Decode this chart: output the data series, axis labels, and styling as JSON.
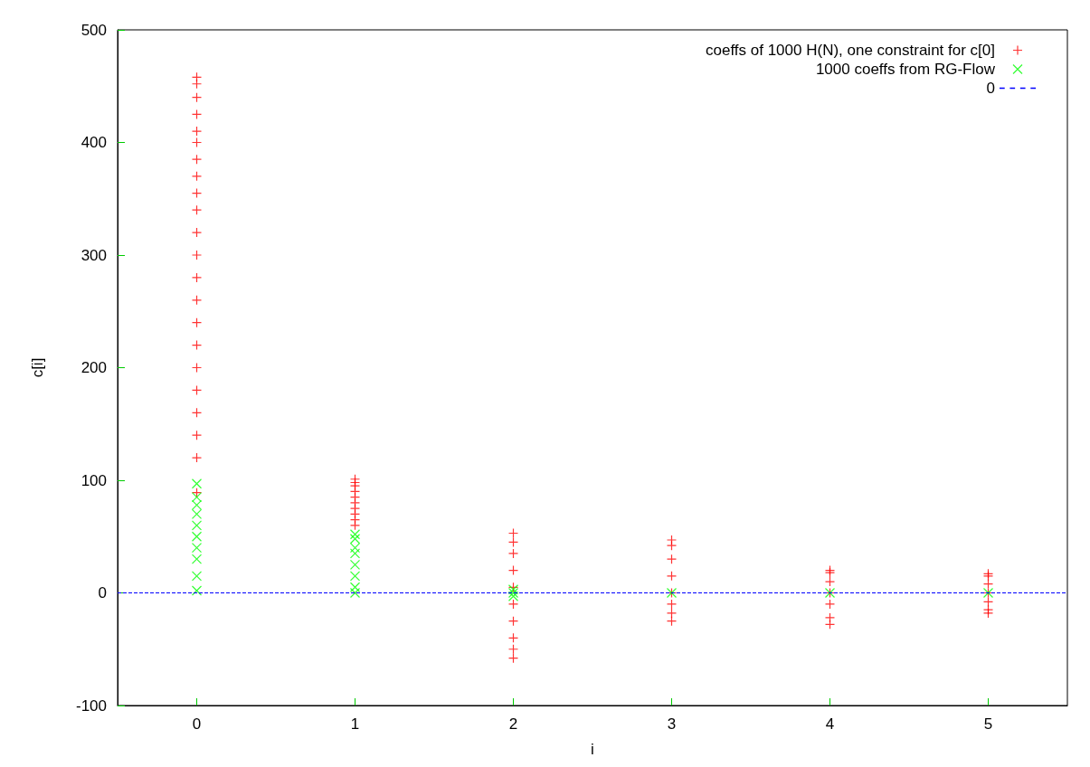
{
  "chart_data": {
    "type": "scatter",
    "xlabel": "i",
    "ylabel": "c[i]",
    "xlim": [
      -0.5,
      5.5
    ],
    "xticks": [
      0,
      1,
      2,
      3,
      4,
      5
    ],
    "ylim": [
      -100,
      500
    ],
    "yticks": [
      -100,
      0,
      100,
      200,
      300,
      400,
      500
    ],
    "grid": false,
    "legend": "top right",
    "series": [
      {
        "name": "coeffs of 1000 H(N), one constraint for c[0]",
        "color": "#ff0000",
        "marker": "plus",
        "x": [
          0,
          0,
          0,
          0,
          0,
          0,
          0,
          0,
          0,
          0,
          0,
          0,
          0,
          0,
          0,
          0,
          0,
          0,
          0,
          0,
          0,
          0,
          1,
          1,
          1,
          1,
          1,
          1,
          1,
          1,
          1,
          1,
          2,
          2,
          2,
          2,
          2,
          2,
          2,
          2,
          2,
          2,
          3,
          3,
          3,
          3,
          3,
          3,
          3,
          3,
          4,
          4,
          4,
          4,
          4,
          4,
          4,
          5,
          5,
          5,
          5,
          5,
          5,
          5
        ],
        "values": [
          458,
          452,
          440,
          425,
          410,
          400,
          385,
          370,
          355,
          340,
          320,
          300,
          280,
          260,
          240,
          220,
          200,
          180,
          160,
          140,
          120,
          89,
          101,
          98,
          95,
          90,
          85,
          80,
          75,
          70,
          65,
          60,
          53,
          45,
          35,
          20,
          5,
          -10,
          -25,
          -40,
          -50,
          -58,
          47,
          42,
          30,
          15,
          0,
          -10,
          -18,
          -25,
          20,
          18,
          10,
          0,
          -10,
          -22,
          -28,
          17,
          15,
          8,
          0,
          -8,
          -15,
          -18
        ]
      },
      {
        "name": "1000 coeffs from RG-Flow",
        "color": "#00ff00",
        "marker": "cross",
        "x": [
          0,
          0,
          0,
          0,
          0,
          0,
          0,
          0,
          0,
          0,
          1,
          1,
          1,
          1,
          1,
          1,
          1,
          1,
          2,
          2,
          2,
          3,
          4,
          5
        ],
        "values": [
          97,
          85,
          78,
          70,
          60,
          50,
          40,
          30,
          15,
          2,
          52,
          48,
          40,
          35,
          25,
          15,
          5,
          0,
          3,
          0,
          -3,
          0,
          0,
          0
        ]
      },
      {
        "name": "0",
        "type": "line",
        "color": "#0000ff",
        "line_style": "dashed",
        "marker": "none",
        "x": [
          -0.5,
          5.5
        ],
        "values": [
          0,
          0
        ]
      }
    ]
  }
}
